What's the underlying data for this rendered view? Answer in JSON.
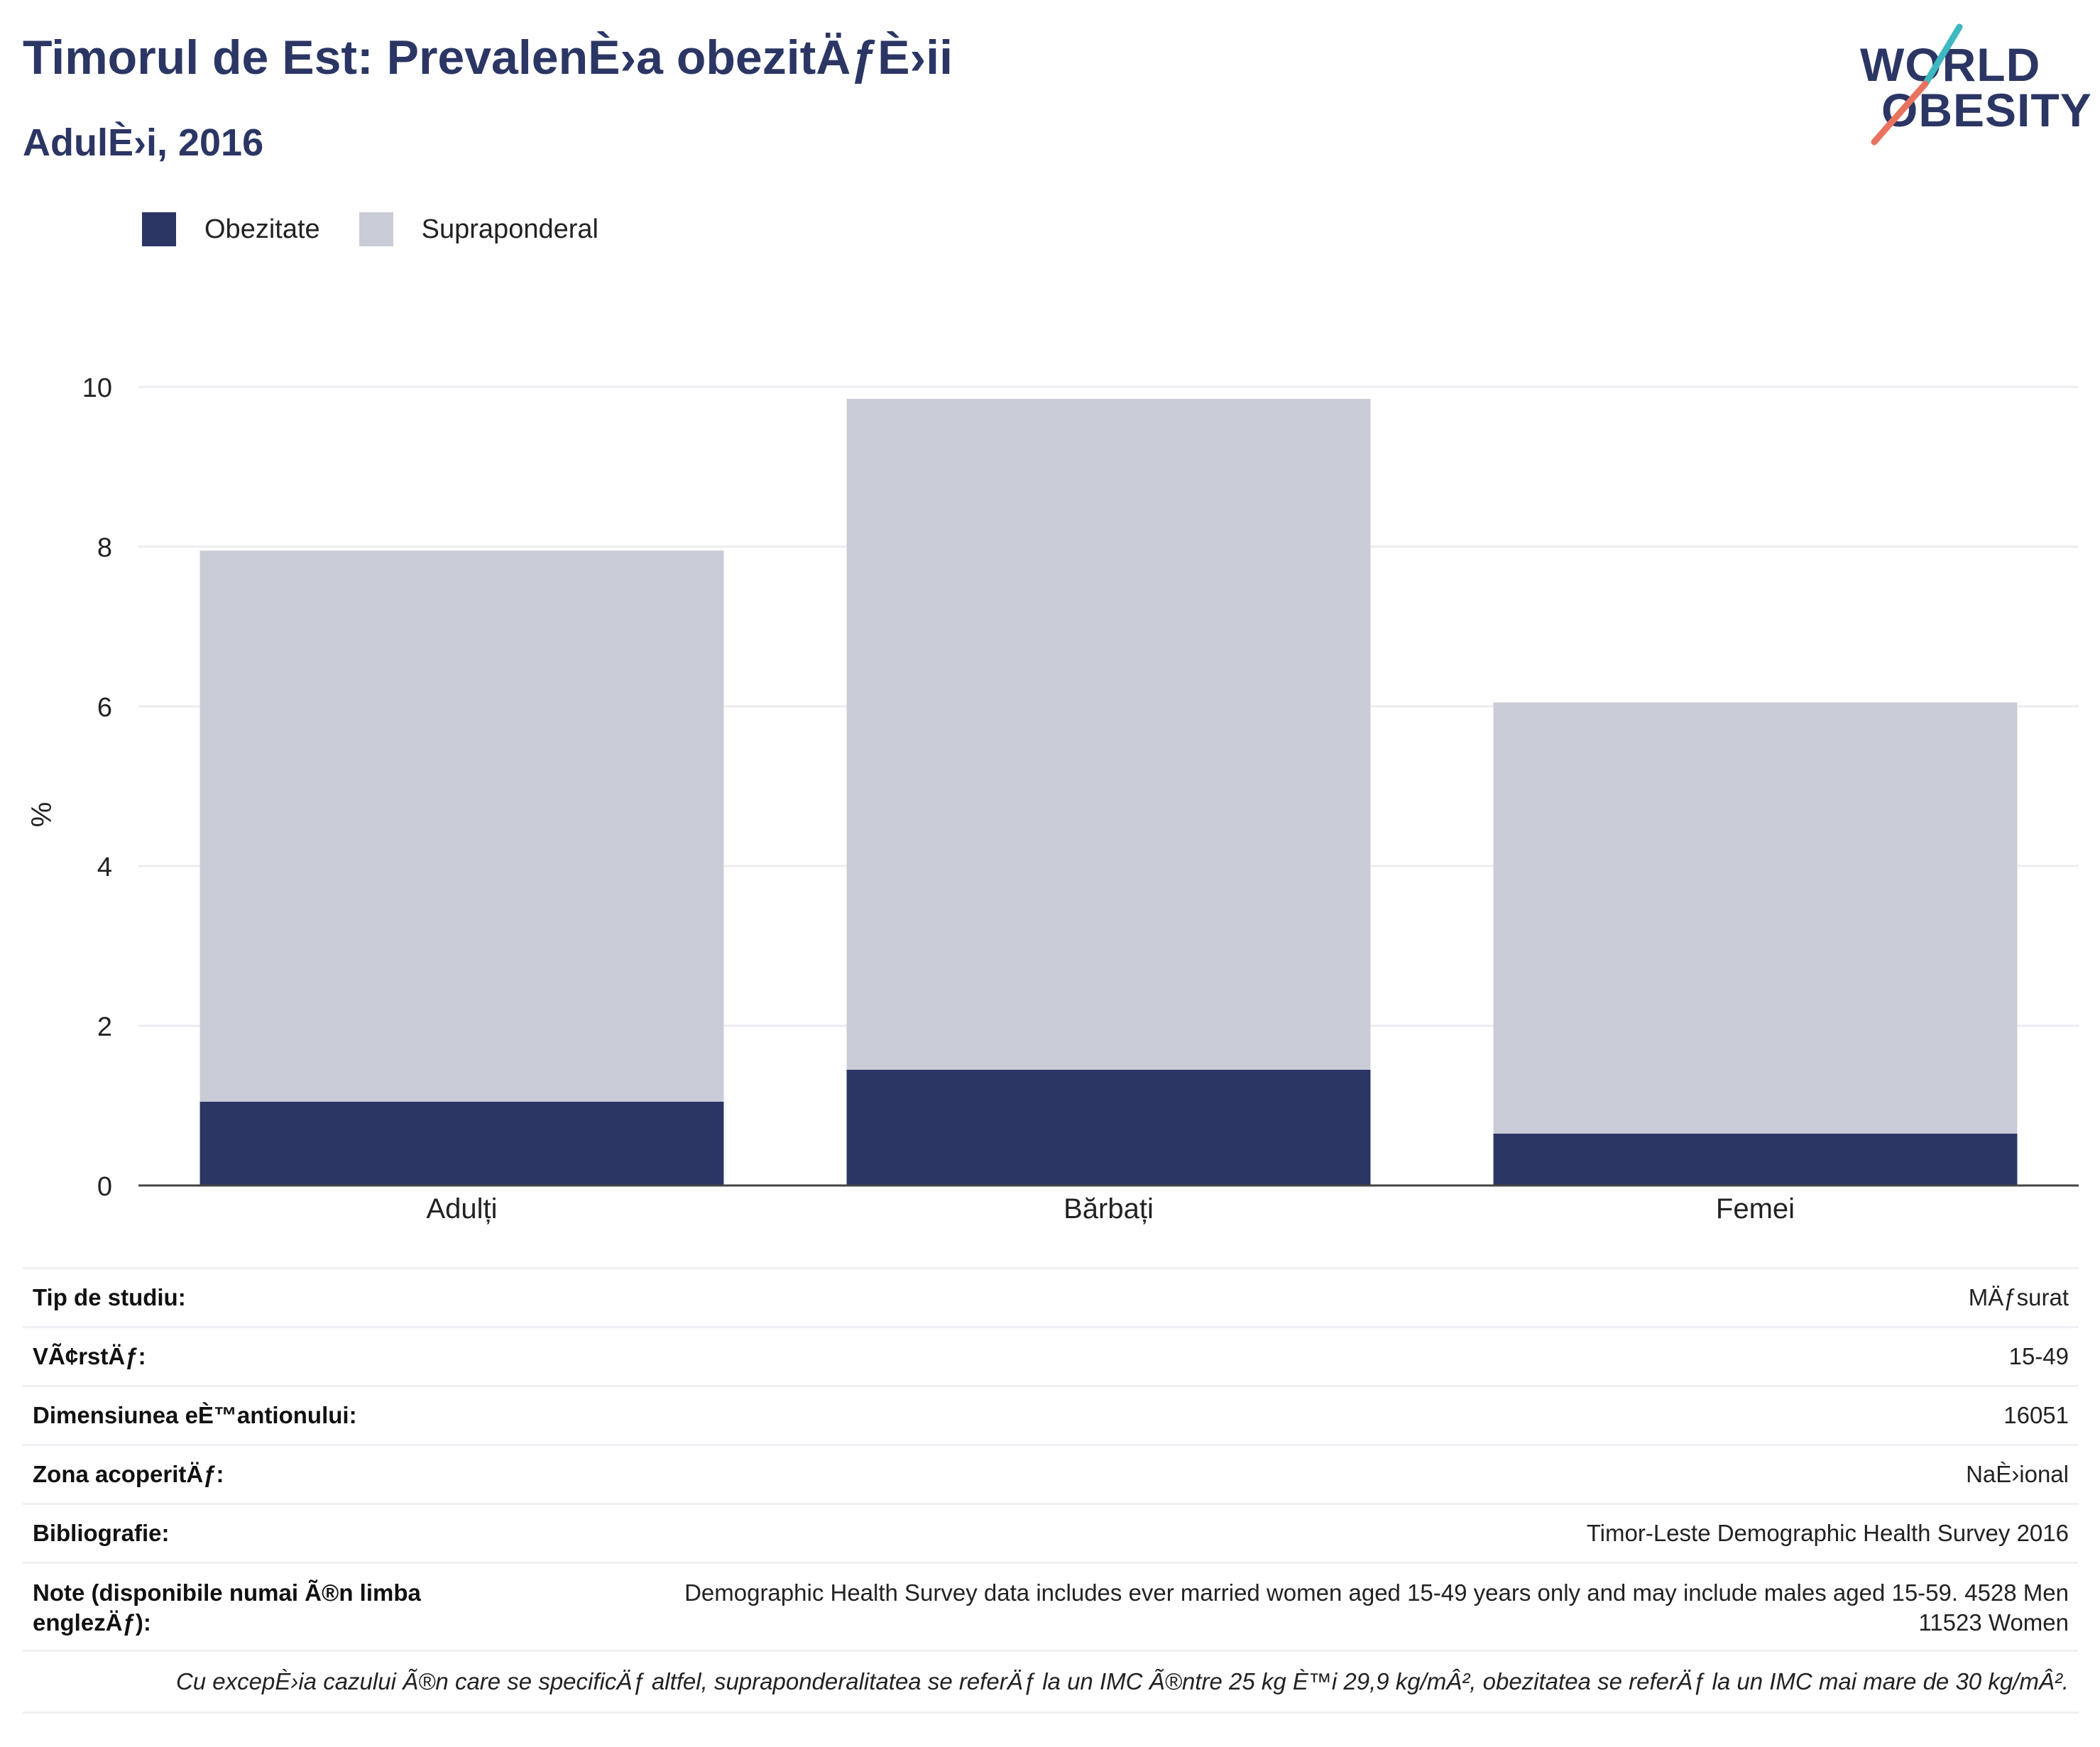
{
  "title": "Timorul de Est: PrevalenÈ›a obezitÄƒÈ›ii",
  "subtitle": "AdulÈ›i, 2016",
  "logo": {
    "line1": "WORLD",
    "line2": "OBESITY"
  },
  "colors": {
    "obesity": "#2b3664",
    "overweight": "#c9ccd7",
    "title": "#2b3664",
    "grid": "#ebedf0",
    "axis": "#444444",
    "logo_teal": "#3fb8c0",
    "logo_coral": "#e8735f"
  },
  "legend": [
    {
      "label": "Obezitate",
      "color": "#2b3664"
    },
    {
      "label": "Supraponderal",
      "color": "#c9ccd7"
    }
  ],
  "chart_data": {
    "type": "bar",
    "stacked": true,
    "categories": [
      "Adulți",
      "Bărbați",
      "Femei"
    ],
    "series": [
      {
        "name": "Obezitate",
        "values": [
          1.05,
          1.45,
          0.65
        ]
      },
      {
        "name": "Supraponderal",
        "values": [
          6.9,
          8.4,
          5.4
        ]
      }
    ],
    "ylabel": "%",
    "ylim": [
      0,
      10
    ],
    "yticks": [
      "0",
      "2",
      "4",
      "6",
      "8",
      "10"
    ],
    "grid": true,
    "legend_position": "top-left"
  },
  "info": {
    "study_type": {
      "label": "Tip de studiu:",
      "value": "MÄƒsurat"
    },
    "age": {
      "label": "VÃ¢rstÄƒ:",
      "value": "15-49"
    },
    "sample_size": {
      "label": "Dimensiunea eÈ™antionului:",
      "value": "16051"
    },
    "area": {
      "label": "Zona acoperitÄƒ:",
      "value": "NaÈ›ional"
    },
    "bibliography": {
      "label": "Bibliografie:",
      "value": "Timor-Leste Demographic Health Survey 2016"
    },
    "notes": {
      "label": "Note (disponibile numai Ã®n limba englezÄƒ):",
      "value_line1": "Demographic Health Survey data includes ever married women aged 15-49 years only and may include males aged 15-59. 4528 Men",
      "value_line2": "11523 Women"
    }
  },
  "footnote": "Cu excepÈ›ia cazului Ã®n care se specificÄƒ altfel, supraponderalitatea se referÄƒ la un IMC Ã®ntre 25 kg È™i 29,9 kg/mÂ², obezitatea se referÄƒ la un IMC mai mare de 30 kg/mÂ²."
}
